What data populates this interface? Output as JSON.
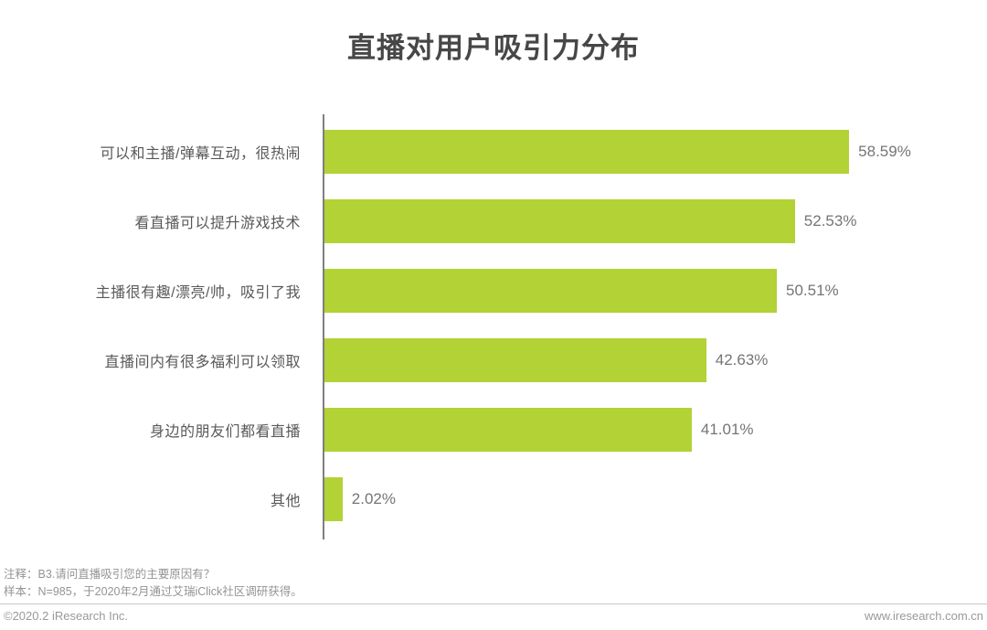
{
  "title": "直播对用户吸引力分布",
  "chart_data": {
    "type": "bar",
    "orientation": "horizontal",
    "title": "直播对用户吸引力分布",
    "categories": [
      "可以和主播/弹幕互动，很热闹",
      "看直播可以提升游戏技术",
      "主播很有趣/漂亮/帅，吸引了我",
      "直播间内有很多福利可以领取",
      "身边的朋友们都看直播",
      "其他"
    ],
    "values": [
      58.59,
      52.53,
      50.51,
      42.63,
      41.01,
      2.02
    ],
    "value_labels": [
      "58.59%",
      "52.53%",
      "50.51%",
      "42.63%",
      "41.01%",
      "2.02%"
    ],
    "xlabel": "",
    "ylabel": "",
    "xlim": [
      0,
      70
    ],
    "grid": false,
    "legend": false,
    "bar_color": "#b2d235",
    "axis_color": "#7f7f7f",
    "label_color": "#595959",
    "value_color": "#757575"
  },
  "notes": {
    "line1": "注释：B3.请问直播吸引您的主要原因有？",
    "line2": "样本：N=985，于2020年2月通过艾瑞iClick社区调研获得。"
  },
  "footer": {
    "copyright": "©2020.2 iResearch Inc.",
    "website": "www.iresearch.com.cn"
  }
}
